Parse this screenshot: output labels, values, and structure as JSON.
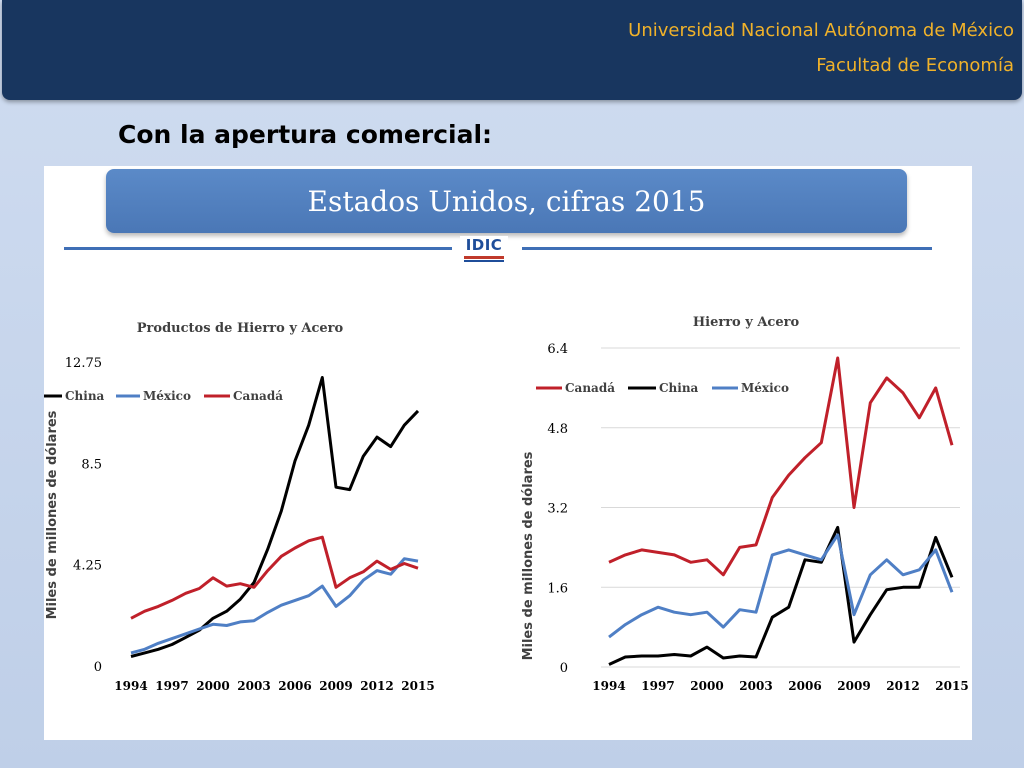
{
  "header": {
    "line1": "Universidad Nacional Autónoma de México",
    "line2": "Facultad de Economía"
  },
  "slide_title": "Con la apertura comercial:",
  "banner_title": "Estados Unidos, cifras 2015",
  "logo_text": "IDIC",
  "colors": {
    "china": "#000000",
    "mexico": "#4f7fc5",
    "canada": "#c0202a",
    "header_bg": "#18365f",
    "header_text": "#f0b22a"
  },
  "chart_data": [
    {
      "type": "line",
      "title": "Productos de Hierro y Acero",
      "ylabel": "Miles de millones de dólares",
      "xlabel": "",
      "x": [
        1994,
        1995,
        1996,
        1997,
        1998,
        1999,
        2000,
        2001,
        2002,
        2003,
        2004,
        2005,
        2006,
        2007,
        2008,
        2009,
        2010,
        2011,
        2012,
        2013,
        2014,
        2015
      ],
      "xticks": [
        "1994",
        "1997",
        "2000",
        "2003",
        "2006",
        "2009",
        "2012",
        "2015"
      ],
      "yticks": [
        "0",
        "4.25",
        "8.5",
        "12.75"
      ],
      "ylim": [
        0,
        12.75
      ],
      "grid": false,
      "legend": "top-left",
      "series": [
        {
          "name": "China",
          "color": "#000000",
          "values": [
            0.4,
            0.55,
            0.7,
            0.9,
            1.2,
            1.5,
            2.0,
            2.3,
            2.8,
            3.5,
            4.9,
            6.5,
            8.6,
            10.1,
            12.1,
            7.5,
            7.4,
            8.8,
            9.6,
            9.2,
            10.1,
            10.7
          ]
        },
        {
          "name": "México",
          "color": "#4f7fc5",
          "values": [
            0.55,
            0.7,
            0.95,
            1.15,
            1.35,
            1.55,
            1.75,
            1.7,
            1.85,
            1.9,
            2.25,
            2.55,
            2.75,
            2.95,
            3.35,
            2.5,
            2.95,
            3.6,
            4.0,
            3.85,
            4.5,
            4.4
          ]
        },
        {
          "name": "Canadá",
          "color": "#c0202a",
          "values": [
            2.0,
            2.3,
            2.5,
            2.75,
            3.05,
            3.25,
            3.7,
            3.35,
            3.45,
            3.3,
            4.0,
            4.6,
            4.95,
            5.25,
            5.4,
            3.3,
            3.7,
            3.95,
            4.4,
            4.05,
            4.3,
            4.1
          ]
        }
      ]
    },
    {
      "type": "line",
      "title": "Hierro y Acero",
      "ylabel": "Miles de millones de dólares",
      "xlabel": "",
      "x": [
        1994,
        1995,
        1996,
        1997,
        1998,
        1999,
        2000,
        2001,
        2002,
        2003,
        2004,
        2005,
        2006,
        2007,
        2008,
        2009,
        2010,
        2011,
        2012,
        2013,
        2014,
        2015
      ],
      "xticks": [
        "1994",
        "1997",
        "2000",
        "2003",
        "2006",
        "2009",
        "2012",
        "2015"
      ],
      "yticks": [
        "0",
        "1.6",
        "3.2",
        "4.8",
        "6.4"
      ],
      "ylim": [
        0,
        6.4
      ],
      "grid": true,
      "legend": "top-left",
      "series": [
        {
          "name": "Canadá",
          "color": "#c0202a",
          "values": [
            2.1,
            2.25,
            2.35,
            2.3,
            2.25,
            2.1,
            2.15,
            1.85,
            2.4,
            2.45,
            3.4,
            3.85,
            4.2,
            4.5,
            6.2,
            3.2,
            5.3,
            5.8,
            5.5,
            5.0,
            5.6,
            4.45
          ]
        },
        {
          "name": "China",
          "color": "#000000",
          "values": [
            0.05,
            0.2,
            0.22,
            0.22,
            0.25,
            0.22,
            0.4,
            0.18,
            0.22,
            0.2,
            1.0,
            1.2,
            2.15,
            2.1,
            2.8,
            0.5,
            1.05,
            1.55,
            1.6,
            1.6,
            2.6,
            1.8
          ]
        },
        {
          "name": "México",
          "color": "#4f7fc5",
          "values": [
            0.6,
            0.85,
            1.05,
            1.2,
            1.1,
            1.05,
            1.1,
            0.8,
            1.15,
            1.1,
            2.25,
            2.35,
            2.25,
            2.15,
            2.65,
            1.05,
            1.85,
            2.15,
            1.85,
            1.95,
            2.35,
            1.5
          ]
        }
      ]
    }
  ]
}
